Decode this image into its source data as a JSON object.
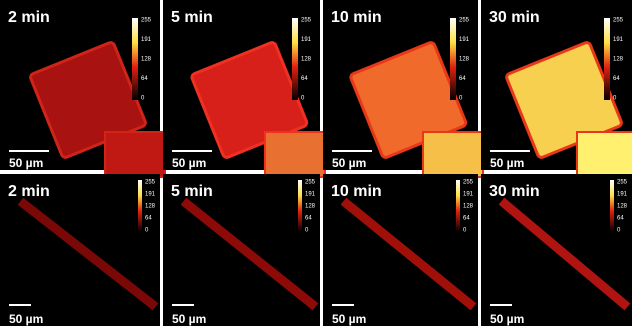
{
  "panels": [
    {
      "label": "2 min",
      "colorbar": [
        "255",
        "191",
        "128",
        "64",
        "0"
      ],
      "scale_bar": "50 µm"
    },
    {
      "label": "5 min",
      "colorbar": [
        "255",
        "191",
        "128",
        "64",
        "0"
      ],
      "scale_bar": "50 µm"
    },
    {
      "label": "10 min",
      "colorbar": [
        "255",
        "191",
        "128",
        "64",
        "0"
      ],
      "scale_bar": "50 µm"
    },
    {
      "label": "30 min",
      "colorbar": [
        "255",
        "191",
        "128",
        "64",
        "0"
      ],
      "scale_bar": "50 µm"
    },
    {
      "label": "2 min",
      "colorbar": [
        "255",
        "191",
        "128",
        "64",
        "0"
      ],
      "scale_bar": "50 µm"
    },
    {
      "label": "5 min",
      "colorbar": [
        "255",
        "191",
        "128",
        "64",
        "0"
      ],
      "scale_bar": "50 µm"
    },
    {
      "label": "10 min",
      "colorbar": [
        "255",
        "191",
        "128",
        "64",
        "0"
      ],
      "scale_bar": "50 µm"
    },
    {
      "label": "30 min",
      "colorbar": [
        "255",
        "191",
        "128",
        "64",
        "0"
      ],
      "scale_bar": "50 µm"
    }
  ]
}
